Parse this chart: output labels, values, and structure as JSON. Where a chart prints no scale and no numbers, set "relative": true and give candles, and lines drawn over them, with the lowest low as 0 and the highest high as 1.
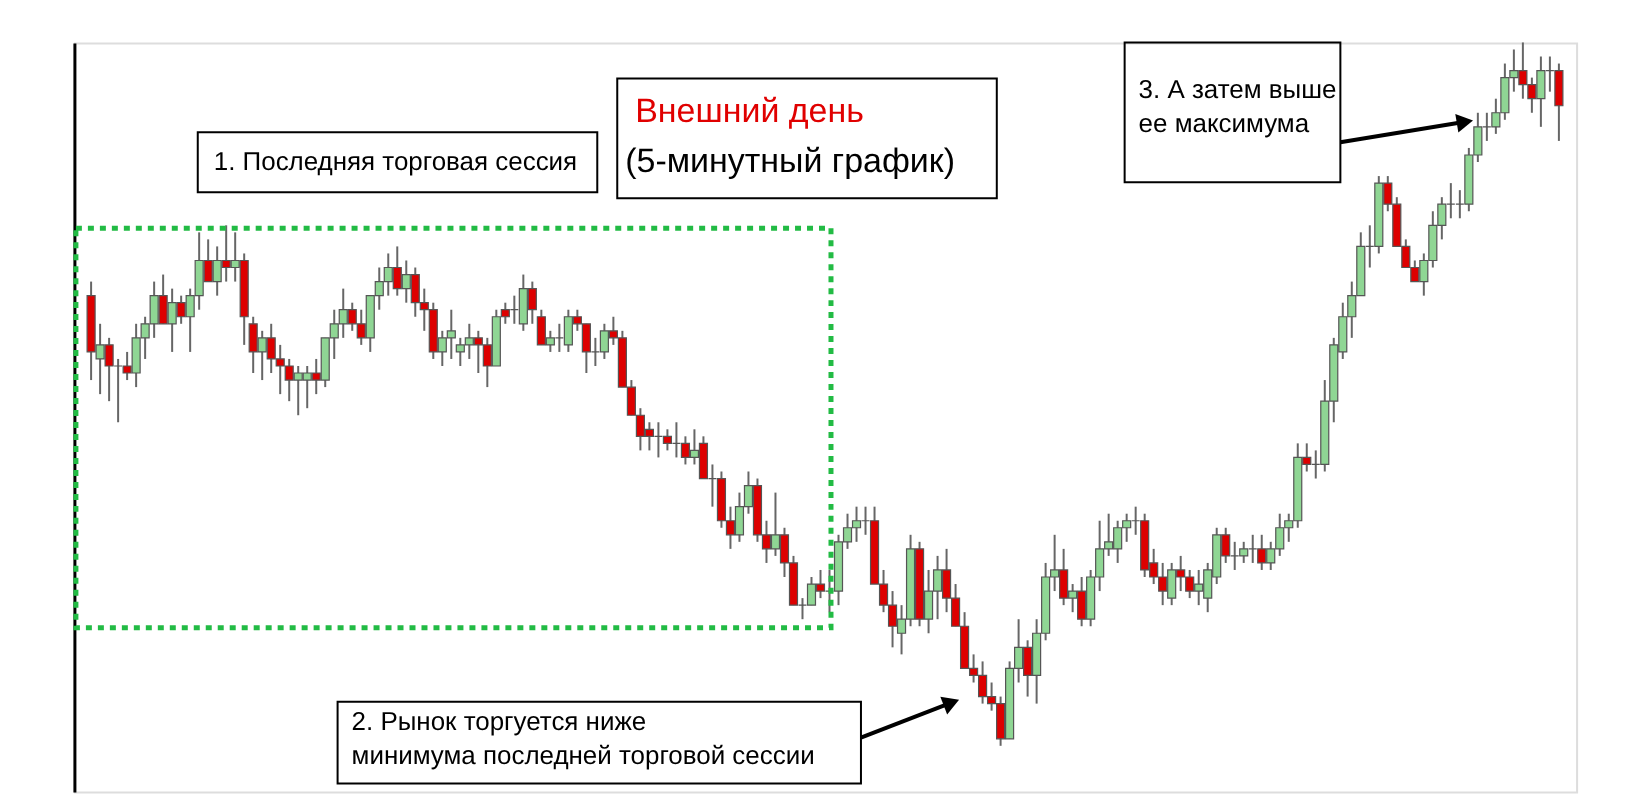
{
  "chart_data": {
    "type": "candlestick",
    "relative": true,
    "title": "Внешний день",
    "subtitle": "(5-минутный график)",
    "annotations": [
      "1. Последняя торговая сессия",
      "2. Рынок торгуется ниже\nминимума последней торговой сессии",
      "3. А затем выше\nее максимума"
    ],
    "ohlc": [
      [
        0.64,
        0.66,
        0.52,
        0.56
      ],
      [
        0.55,
        0.6,
        0.5,
        0.57
      ],
      [
        0.57,
        0.58,
        0.49,
        0.54
      ],
      [
        0.54,
        0.55,
        0.46,
        0.54
      ],
      [
        0.54,
        0.56,
        0.52,
        0.53
      ],
      [
        0.53,
        0.6,
        0.51,
        0.58
      ],
      [
        0.58,
        0.61,
        0.55,
        0.6
      ],
      [
        0.6,
        0.66,
        0.58,
        0.64
      ],
      [
        0.64,
        0.67,
        0.6,
        0.6
      ],
      [
        0.6,
        0.65,
        0.56,
        0.63
      ],
      [
        0.63,
        0.64,
        0.6,
        0.61
      ],
      [
        0.61,
        0.65,
        0.56,
        0.64
      ],
      [
        0.64,
        0.73,
        0.62,
        0.69
      ],
      [
        0.69,
        0.72,
        0.66,
        0.66
      ],
      [
        0.66,
        0.71,
        0.64,
        0.69
      ],
      [
        0.69,
        0.74,
        0.66,
        0.68
      ],
      [
        0.68,
        0.73,
        0.66,
        0.69
      ],
      [
        0.69,
        0.7,
        0.57,
        0.61
      ],
      [
        0.6,
        0.61,
        0.53,
        0.56
      ],
      [
        0.56,
        0.59,
        0.52,
        0.58
      ],
      [
        0.58,
        0.6,
        0.53,
        0.55
      ],
      [
        0.55,
        0.57,
        0.5,
        0.54
      ],
      [
        0.54,
        0.55,
        0.49,
        0.52
      ],
      [
        0.52,
        0.54,
        0.47,
        0.53
      ],
      [
        0.52,
        0.54,
        0.48,
        0.53
      ],
      [
        0.53,
        0.55,
        0.5,
        0.52
      ],
      [
        0.52,
        0.58,
        0.51,
        0.58
      ],
      [
        0.58,
        0.62,
        0.55,
        0.6
      ],
      [
        0.6,
        0.65,
        0.58,
        0.62
      ],
      [
        0.62,
        0.63,
        0.59,
        0.6
      ],
      [
        0.6,
        0.62,
        0.57,
        0.58
      ],
      [
        0.58,
        0.64,
        0.56,
        0.64
      ],
      [
        0.64,
        0.68,
        0.62,
        0.66
      ],
      [
        0.66,
        0.7,
        0.64,
        0.68
      ],
      [
        0.68,
        0.71,
        0.64,
        0.65
      ],
      [
        0.65,
        0.69,
        0.63,
        0.67
      ],
      [
        0.67,
        0.68,
        0.61,
        0.63
      ],
      [
        0.63,
        0.65,
        0.59,
        0.62
      ],
      [
        0.62,
        0.63,
        0.55,
        0.56
      ],
      [
        0.56,
        0.59,
        0.54,
        0.58
      ],
      [
        0.58,
        0.62,
        0.55,
        0.59
      ],
      [
        0.56,
        0.58,
        0.54,
        0.57
      ],
      [
        0.57,
        0.6,
        0.55,
        0.58
      ],
      [
        0.58,
        0.59,
        0.53,
        0.57
      ],
      [
        0.57,
        0.58,
        0.51,
        0.54
      ],
      [
        0.54,
        0.62,
        0.54,
        0.61
      ],
      [
        0.62,
        0.63,
        0.6,
        0.61
      ],
      [
        0.62,
        0.64,
        0.6,
        0.62
      ],
      [
        0.6,
        0.67,
        0.59,
        0.65
      ],
      [
        0.65,
        0.66,
        0.6,
        0.62
      ],
      [
        0.61,
        0.62,
        0.57,
        0.57
      ],
      [
        0.57,
        0.59,
        0.56,
        0.58
      ],
      [
        0.58,
        0.6,
        0.56,
        0.58
      ],
      [
        0.57,
        0.62,
        0.56,
        0.61
      ],
      [
        0.61,
        0.62,
        0.59,
        0.6
      ],
      [
        0.6,
        0.6,
        0.53,
        0.56
      ],
      [
        0.56,
        0.58,
        0.54,
        0.56
      ],
      [
        0.56,
        0.6,
        0.55,
        0.59
      ],
      [
        0.59,
        0.61,
        0.57,
        0.58
      ],
      [
        0.58,
        0.59,
        0.51,
        0.51
      ],
      [
        0.51,
        0.52,
        0.47,
        0.47
      ],
      [
        0.47,
        0.48,
        0.42,
        0.44
      ],
      [
        0.45,
        0.46,
        0.42,
        0.44
      ],
      [
        0.44,
        0.46,
        0.41,
        0.44
      ],
      [
        0.44,
        0.45,
        0.42,
        0.43
      ],
      [
        0.43,
        0.46,
        0.41,
        0.43
      ],
      [
        0.43,
        0.44,
        0.4,
        0.41
      ],
      [
        0.41,
        0.45,
        0.4,
        0.42
      ],
      [
        0.43,
        0.44,
        0.38,
        0.38
      ],
      [
        0.38,
        0.4,
        0.34,
        0.38
      ],
      [
        0.38,
        0.39,
        0.31,
        0.32
      ],
      [
        0.32,
        0.34,
        0.28,
        0.3
      ],
      [
        0.3,
        0.36,
        0.29,
        0.34
      ],
      [
        0.34,
        0.39,
        0.33,
        0.37
      ],
      [
        0.37,
        0.38,
        0.29,
        0.3
      ],
      [
        0.3,
        0.32,
        0.26,
        0.28
      ],
      [
        0.28,
        0.36,
        0.27,
        0.3
      ],
      [
        0.3,
        0.31,
        0.24,
        0.26
      ],
      [
        0.26,
        0.27,
        0.2,
        0.2
      ],
      [
        0.2,
        0.21,
        0.18,
        0.2
      ],
      [
        0.2,
        0.24,
        0.2,
        0.23
      ],
      [
        0.23,
        0.25,
        0.21,
        0.22
      ],
      [
        0.22,
        0.25,
        0.19,
        0.22
      ],
      [
        0.22,
        0.3,
        0.2,
        0.29
      ],
      [
        0.29,
        0.33,
        0.28,
        0.31
      ],
      [
        0.31,
        0.34,
        0.29,
        0.32
      ],
      [
        0.32,
        0.34,
        0.3,
        0.32
      ],
      [
        0.32,
        0.34,
        0.23,
        0.23
      ],
      [
        0.23,
        0.25,
        0.19,
        0.2
      ],
      [
        0.2,
        0.22,
        0.14,
        0.17
      ],
      [
        0.16,
        0.2,
        0.13,
        0.18
      ],
      [
        0.18,
        0.3,
        0.17,
        0.28
      ],
      [
        0.28,
        0.29,
        0.17,
        0.18
      ],
      [
        0.18,
        0.25,
        0.16,
        0.22
      ],
      [
        0.22,
        0.27,
        0.18,
        0.25
      ],
      [
        0.25,
        0.28,
        0.19,
        0.21
      ],
      [
        0.21,
        0.23,
        0.17,
        0.17
      ],
      [
        0.17,
        0.19,
        0.11,
        0.11
      ],
      [
        0.11,
        0.13,
        0.09,
        0.1
      ],
      [
        0.1,
        0.12,
        0.06,
        0.07
      ],
      [
        0.07,
        0.09,
        0.05,
        0.06
      ],
      [
        0.06,
        0.07,
        0.0,
        0.01
      ],
      [
        0.01,
        0.12,
        0.01,
        0.11
      ],
      [
        0.11,
        0.18,
        0.09,
        0.14
      ],
      [
        0.14,
        0.15,
        0.07,
        0.1
      ],
      [
        0.1,
        0.18,
        0.06,
        0.16
      ],
      [
        0.16,
        0.26,
        0.15,
        0.24
      ],
      [
        0.24,
        0.3,
        0.22,
        0.25
      ],
      [
        0.25,
        0.28,
        0.2,
        0.21
      ],
      [
        0.21,
        0.23,
        0.19,
        0.22
      ],
      [
        0.22,
        0.24,
        0.17,
        0.18
      ],
      [
        0.18,
        0.25,
        0.17,
        0.24
      ],
      [
        0.24,
        0.32,
        0.22,
        0.28
      ],
      [
        0.28,
        0.33,
        0.27,
        0.29
      ],
      [
        0.28,
        0.32,
        0.26,
        0.31
      ],
      [
        0.31,
        0.33,
        0.29,
        0.32
      ],
      [
        0.32,
        0.34,
        0.3,
        0.32
      ],
      [
        0.32,
        0.33,
        0.24,
        0.25
      ],
      [
        0.26,
        0.28,
        0.23,
        0.24
      ],
      [
        0.24,
        0.26,
        0.2,
        0.22
      ],
      [
        0.21,
        0.26,
        0.2,
        0.25
      ],
      [
        0.25,
        0.27,
        0.22,
        0.24
      ],
      [
        0.24,
        0.25,
        0.21,
        0.22
      ],
      [
        0.22,
        0.25,
        0.2,
        0.23
      ],
      [
        0.21,
        0.26,
        0.19,
        0.25
      ],
      [
        0.24,
        0.31,
        0.23,
        0.3
      ],
      [
        0.3,
        0.31,
        0.26,
        0.27
      ],
      [
        0.27,
        0.29,
        0.25,
        0.27
      ],
      [
        0.27,
        0.29,
        0.26,
        0.28
      ],
      [
        0.28,
        0.3,
        0.26,
        0.28
      ],
      [
        0.28,
        0.3,
        0.25,
        0.26
      ],
      [
        0.26,
        0.29,
        0.25,
        0.28
      ],
      [
        0.28,
        0.33,
        0.27,
        0.31
      ],
      [
        0.31,
        0.33,
        0.29,
        0.32
      ],
      [
        0.32,
        0.43,
        0.31,
        0.41
      ],
      [
        0.41,
        0.43,
        0.39,
        0.4
      ],
      [
        0.4,
        0.42,
        0.38,
        0.4
      ],
      [
        0.4,
        0.52,
        0.39,
        0.49
      ],
      [
        0.49,
        0.58,
        0.46,
        0.57
      ],
      [
        0.56,
        0.63,
        0.55,
        0.61
      ],
      [
        0.61,
        0.66,
        0.58,
        0.64
      ],
      [
        0.64,
        0.73,
        0.64,
        0.71
      ],
      [
        0.71,
        0.74,
        0.68,
        0.71
      ],
      [
        0.71,
        0.81,
        0.7,
        0.8
      ],
      [
        0.8,
        0.81,
        0.76,
        0.77
      ],
      [
        0.77,
        0.78,
        0.71,
        0.71
      ],
      [
        0.71,
        0.72,
        0.68,
        0.68
      ],
      [
        0.68,
        0.69,
        0.66,
        0.66
      ],
      [
        0.66,
        0.7,
        0.64,
        0.69
      ],
      [
        0.69,
        0.76,
        0.68,
        0.74
      ],
      [
        0.74,
        0.78,
        0.72,
        0.77
      ],
      [
        0.77,
        0.8,
        0.75,
        0.77
      ],
      [
        0.77,
        0.79,
        0.75,
        0.77
      ],
      [
        0.77,
        0.85,
        0.76,
        0.84
      ],
      [
        0.84,
        0.9,
        0.83,
        0.88
      ],
      [
        0.88,
        0.9,
        0.86,
        0.88
      ],
      [
        0.88,
        0.92,
        0.87,
        0.9
      ],
      [
        0.9,
        0.97,
        0.89,
        0.95
      ],
      [
        0.95,
        0.99,
        0.93,
        0.96
      ],
      [
        0.96,
        1.0,
        0.92,
        0.94
      ],
      [
        0.94,
        0.95,
        0.9,
        0.92
      ],
      [
        0.92,
        0.98,
        0.88,
        0.96
      ],
      [
        0.96,
        0.98,
        0.93,
        0.96
      ],
      [
        0.96,
        0.97,
        0.86,
        0.91
      ]
    ]
  }
}
